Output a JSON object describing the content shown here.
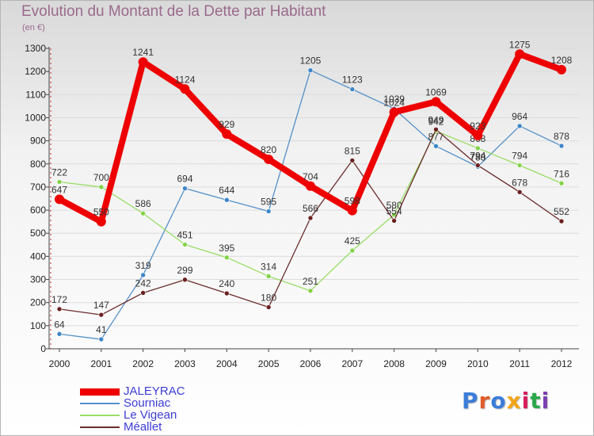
{
  "header": {
    "title": "Evolution du Montant de la Dette par Habitant",
    "subtitle": "(en €)"
  },
  "logo": {
    "text": "Proxiti",
    "colors": [
      "#3b7dd8",
      "#e05a2a",
      "#3b7dd8",
      "#f2a51a",
      "#d81e5b",
      "#2aa84a",
      "#7b3fb0"
    ]
  },
  "chart_data": {
    "type": "line",
    "title": "Evolution du Montant de la Dette par Habitant",
    "subtitle": "(en €)",
    "xlabel": "",
    "ylabel": "",
    "x": [
      2000,
      2001,
      2002,
      2003,
      2004,
      2005,
      2006,
      2007,
      2008,
      2009,
      2010,
      2011,
      2012
    ],
    "x_tick_labels": [
      "2000",
      "2001",
      "2002",
      "2003",
      "2004",
      "2005",
      "2006",
      "2007",
      "2008",
      "2009",
      "2010",
      "2011",
      "2012"
    ],
    "ylim": [
      0,
      1300
    ],
    "y_ticks": [
      0,
      100,
      200,
      300,
      400,
      500,
      600,
      700,
      800,
      900,
      1000,
      1100,
      1200,
      1300
    ],
    "grid": "horizontal",
    "legend_position": "bottom-left",
    "series": [
      {
        "name": "Sourniac",
        "color": "#5590c8",
        "marker_color": "#3d86c8",
        "values": [
          64,
          41,
          319,
          694,
          644,
          595,
          1205,
          1123,
          1039,
          877,
          788,
          964,
          878
        ]
      },
      {
        "name": "Le Vigean",
        "color": "#99dd66",
        "marker_color": "#84d24a",
        "values": [
          722,
          700,
          586,
          451,
          395,
          314,
          251,
          425,
          580,
          942,
          868,
          794,
          716
        ]
      },
      {
        "name": "Méallet",
        "color": "#6b2c2c",
        "marker_color": "#6b2020",
        "values": [
          172,
          147,
          242,
          299,
          240,
          180,
          566,
          815,
          554,
          949,
          794,
          678,
          552
        ]
      },
      {
        "name": "JALEYRAC",
        "color": "#ee0000",
        "marker_color": "#ee0000",
        "values": [
          647,
          550,
          1241,
          1124,
          929,
          820,
          704,
          598,
          1024,
          1069,
          923,
          1275,
          1208
        ]
      }
    ],
    "legend_order": [
      "JALEYRAC",
      "Sourniac",
      "Le Vigean",
      "Méallet"
    ]
  }
}
